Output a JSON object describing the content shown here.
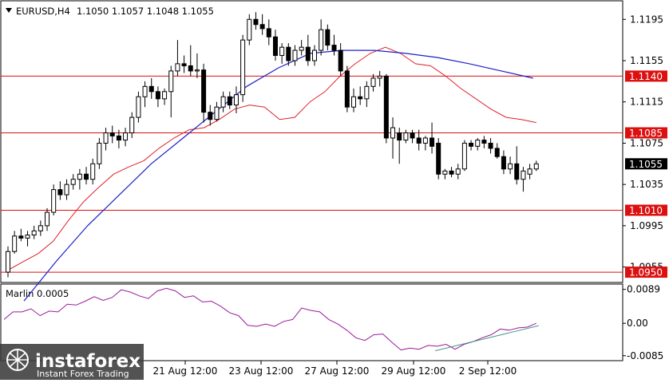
{
  "header": {
    "symbol_line": "EURUSD,H4",
    "ohlc": "1.1050 1.1057 1.1048 1.1055"
  },
  "indicator": {
    "label": "Marlin 0.0005"
  },
  "watermark": {
    "brand": "instaforex",
    "tagline": "Instant Forex Trading"
  },
  "colors": {
    "bull_body": "#ffffff",
    "bear_body": "#000000",
    "wick": "#000000",
    "ma_fast": "#e0202a",
    "ma_slow": "#1c20c8",
    "levels": "#dd1010",
    "oscillator": "#9a1a9a",
    "trend": "#4a9a8a",
    "current_price_bg": "#000000"
  },
  "chart_data": [
    {
      "type": "candlestick",
      "title": "EURUSD,H4",
      "ylim": [
        1.094,
        1.1213
      ],
      "y_ticks": [
        "1.1195",
        "1.1155",
        "1.1115",
        "1.1075",
        "1.1035",
        "1.0995",
        "1.0955"
      ],
      "x_ticks": [
        "21 Aug 12:00",
        "23 Aug 12:00",
        "27 Aug 12:00",
        "29 Aug 12:00",
        "2 Sep 12:00"
      ],
      "horizontal_levels": [
        {
          "label": "1.1140",
          "value": 1.114
        },
        {
          "label": "1.1085",
          "value": 1.1085
        },
        {
          "label": "1.1010",
          "value": 1.101
        },
        {
          "label": "1.0950",
          "value": 1.095
        }
      ],
      "current_price": {
        "label": "1.1055",
        "value": 1.1055
      },
      "candles": [
        [
          1.095,
          1.0975,
          1.0945,
          1.097
        ],
        [
          1.097,
          1.099,
          1.0968,
          1.0985
        ],
        [
          1.0985,
          1.0992,
          1.098,
          1.0983
        ],
        [
          1.0983,
          1.099,
          1.0975,
          1.0986
        ],
        [
          1.0986,
          1.0995,
          1.0982,
          1.099
        ],
        [
          1.099,
          1.1,
          1.0985,
          1.0995
        ],
        [
          1.0995,
          1.1012,
          1.099,
          1.1008
        ],
        [
          1.1008,
          1.1035,
          1.1005,
          1.103
        ],
        [
          1.103,
          1.1038,
          1.102,
          1.1025
        ],
        [
          1.1025,
          1.104,
          1.102,
          1.1035
        ],
        [
          1.1035,
          1.1045,
          1.103,
          1.104
        ],
        [
          1.104,
          1.105,
          1.103,
          1.1045
        ],
        [
          1.1045,
          1.1052,
          1.1035,
          1.104
        ],
        [
          1.104,
          1.106,
          1.1035,
          1.1055
        ],
        [
          1.1055,
          1.108,
          1.105,
          1.1075
        ],
        [
          1.1075,
          1.109,
          1.1068,
          1.1085
        ],
        [
          1.1085,
          1.1092,
          1.1075,
          1.1082
        ],
        [
          1.1082,
          1.1088,
          1.107,
          1.1078
        ],
        [
          1.1078,
          1.109,
          1.1072,
          1.1085
        ],
        [
          1.1085,
          1.1105,
          1.108,
          1.11
        ],
        [
          1.11,
          1.1125,
          1.1095,
          1.112
        ],
        [
          1.112,
          1.1135,
          1.111,
          1.113
        ],
        [
          1.113,
          1.1138,
          1.1118,
          1.1125
        ],
        [
          1.1125,
          1.113,
          1.111,
          1.1118
        ],
        [
          1.1118,
          1.1128,
          1.1112,
          1.1125
        ],
        [
          1.1125,
          1.115,
          1.11,
          1.1145
        ],
        [
          1.1145,
          1.1175,
          1.114,
          1.1152
        ],
        [
          1.1152,
          1.116,
          1.1143,
          1.115
        ],
        [
          1.115,
          1.117,
          1.114,
          1.1145
        ],
        [
          1.1145,
          1.1162,
          1.1138,
          1.1146
        ],
        [
          1.1146,
          1.1152,
          1.1095,
          1.1105
        ],
        [
          1.1105,
          1.1112,
          1.1092,
          1.1098
        ],
        [
          1.1098,
          1.1115,
          1.1096,
          1.111
        ],
        [
          1.111,
          1.1125,
          1.1105,
          1.112
        ],
        [
          1.112,
          1.1125,
          1.1108,
          1.1112
        ],
        [
          1.1112,
          1.113,
          1.1104,
          1.1122
        ],
        [
          1.1122,
          1.118,
          1.1115,
          1.1175
        ],
        [
          1.1175,
          1.12,
          1.117,
          1.1195
        ],
        [
          1.1195,
          1.1202,
          1.1185,
          1.119
        ],
        [
          1.119,
          1.12,
          1.118,
          1.1186
        ],
        [
          1.1186,
          1.1195,
          1.117,
          1.1178
        ],
        [
          1.1178,
          1.1185,
          1.1155,
          1.116
        ],
        [
          1.116,
          1.1172,
          1.1152,
          1.1168
        ],
        [
          1.1168,
          1.1172,
          1.115,
          1.1155
        ],
        [
          1.1155,
          1.117,
          1.115,
          1.1165
        ],
        [
          1.1165,
          1.1175,
          1.116,
          1.1168
        ],
        [
          1.1168,
          1.118,
          1.115,
          1.1155
        ],
        [
          1.1155,
          1.117,
          1.115,
          1.1165
        ],
        [
          1.1165,
          1.1195,
          1.116,
          1.1185
        ],
        [
          1.1185,
          1.119,
          1.1165,
          1.117
        ],
        [
          1.117,
          1.118,
          1.116,
          1.1165
        ],
        [
          1.1165,
          1.1172,
          1.114,
          1.1145
        ],
        [
          1.1145,
          1.115,
          1.1105,
          1.111
        ],
        [
          1.111,
          1.1128,
          1.1105,
          1.112
        ],
        [
          1.112,
          1.113,
          1.1112,
          1.1118
        ],
        [
          1.1118,
          1.1135,
          1.111,
          1.113
        ],
        [
          1.113,
          1.1142,
          1.1125,
          1.1138
        ],
        [
          1.1138,
          1.1145,
          1.113,
          1.114
        ],
        [
          1.114,
          1.1142,
          1.1075,
          1.108
        ],
        [
          1.108,
          1.11,
          1.106,
          1.109
        ],
        [
          1.1085,
          1.109,
          1.1055,
          1.1078
        ],
        [
          1.1078,
          1.1088,
          1.1075,
          1.1085
        ],
        [
          1.1085,
          1.1088,
          1.1075,
          1.108
        ],
        [
          1.108,
          1.1088,
          1.1068,
          1.1075
        ],
        [
          1.1075,
          1.1082,
          1.1068,
          1.108
        ],
        [
          1.108,
          1.1095,
          1.1065,
          1.1072
        ],
        [
          1.1075,
          1.108,
          1.104,
          1.1045
        ],
        [
          1.1045,
          1.105,
          1.104,
          1.1048
        ],
        [
          1.1048,
          1.1052,
          1.1042,
          1.1045
        ],
        [
          1.1045,
          1.1055,
          1.104,
          1.105
        ],
        [
          1.105,
          1.1078,
          1.1048,
          1.1075
        ],
        [
          1.1075,
          1.1078,
          1.1068,
          1.1072
        ],
        [
          1.1072,
          1.108,
          1.1068,
          1.1078
        ],
        [
          1.1078,
          1.1082,
          1.107,
          1.1075
        ],
        [
          1.1075,
          1.108,
          1.1065,
          1.107
        ],
        [
          1.107,
          1.1075,
          1.106,
          1.1062
        ],
        [
          1.1062,
          1.1068,
          1.1045,
          1.105
        ],
        [
          1.105,
          1.1062,
          1.1045,
          1.1055
        ],
        [
          1.1055,
          1.1072,
          1.1035,
          1.104
        ],
        [
          1.104,
          1.1052,
          1.1028,
          1.1048
        ],
        [
          1.1045,
          1.1055,
          1.104,
          1.105
        ],
        [
          1.105,
          1.1058,
          1.1048,
          1.1055
        ]
      ],
      "red_line": [
        1.0952,
        1.096,
        1.0968,
        1.098,
        1.1,
        1.1018,
        1.1032,
        1.1045,
        1.1052,
        1.1058,
        1.107,
        1.108,
        1.1088,
        1.109,
        1.1098,
        1.1108,
        1.1112,
        1.111,
        1.1098,
        1.11,
        1.1115,
        1.1125,
        1.114,
        1.1152,
        1.1162,
        1.1168,
        1.1162,
        1.1152,
        1.115,
        1.114,
        1.1128,
        1.1118,
        1.1108,
        1.11,
        1.1098,
        1.1095
      ],
      "blue_line": [
        1.0922,
        1.096,
        1.0995,
        1.1025,
        1.1055,
        1.108,
        1.1105,
        1.113,
        1.1148,
        1.1162,
        1.1165,
        1.1165,
        1.1162,
        1.1158,
        1.1152,
        1.1145,
        1.1138
      ]
    },
    {
      "type": "line",
      "title": "Marlin 0.0005",
      "ylim": [
        -0.0098,
        0.0103
      ],
      "y_ticks": [
        "0.0089",
        "0.00",
        "-0.0085"
      ],
      "series": [
        {
          "values": [
            0.001,
            0.003,
            0.003,
            0.0038,
            0.002,
            0.0032,
            0.003,
            0.005,
            0.0048,
            0.0058,
            0.007,
            0.006,
            0.0068,
            0.0088,
            0.0082,
            0.0072,
            0.0065,
            0.0085,
            0.0092,
            0.0085,
            0.0068,
            0.0072,
            0.0056,
            0.0058,
            0.0045,
            0.0028,
            0.002,
            -0.0005,
            -0.0008,
            -0.0002,
            -0.0008,
            0.0005,
            0.001,
            0.004,
            0.0034,
            0.003,
            0.001,
            -0.0002,
            -0.0018,
            -0.0038,
            -0.0045,
            -0.003,
            -0.0028,
            -0.005,
            -0.007,
            -0.0065,
            -0.0068,
            -0.0058,
            -0.006,
            -0.0055,
            -0.0068,
            -0.0055,
            -0.0048,
            -0.0038,
            -0.003,
            -0.0015,
            -0.0018,
            -0.0012,
            -0.001,
            0.0
          ]
        },
        {
          "values": [
            -0.0072,
            -0.0006
          ]
        }
      ]
    }
  ]
}
